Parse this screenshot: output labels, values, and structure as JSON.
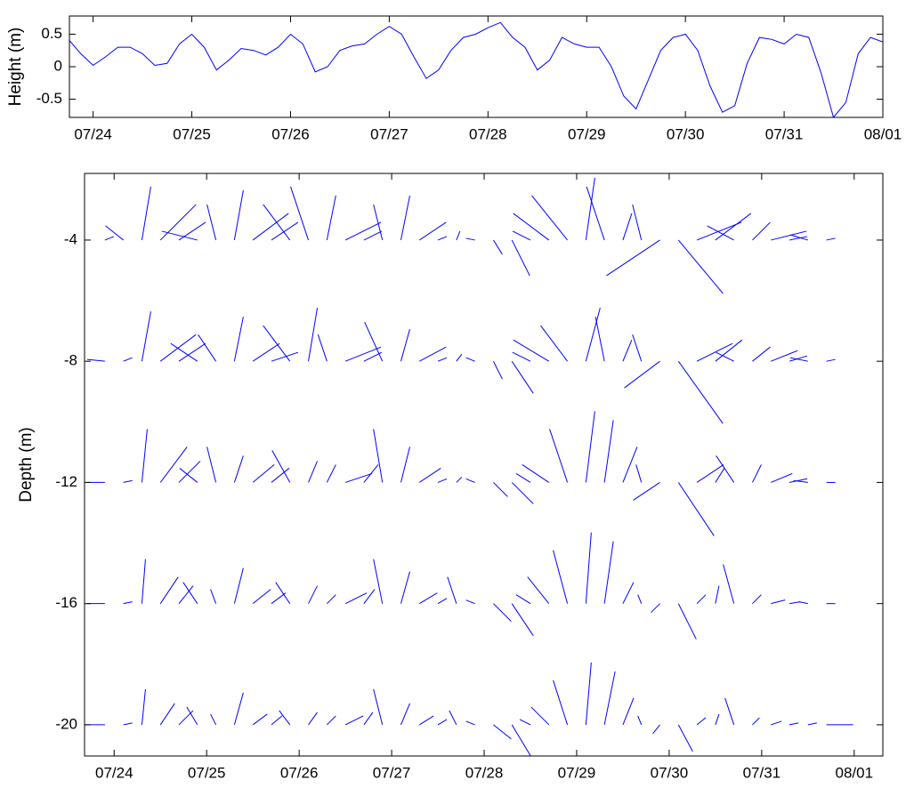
{
  "chart_data": [
    {
      "type": "line",
      "ylabel": "Height (m)",
      "color": "#0000ff",
      "x": [
        -0.25,
        -0.125,
        0,
        0.125,
        0.25,
        0.375,
        0.5,
        0.625,
        0.75,
        0.875,
        1,
        1.125,
        1.25,
        1.375,
        1.5,
        1.625,
        1.75,
        1.875,
        2,
        2.125,
        2.25,
        2.375,
        2.5,
        2.625,
        2.75,
        2.875,
        3,
        3.125,
        3.25,
        3.375,
        3.5,
        3.625,
        3.75,
        3.875,
        4,
        4.125,
        4.25,
        4.375,
        4.5,
        4.625,
        4.75,
        4.875,
        5,
        5.125,
        5.25,
        5.375,
        5.5,
        5.625,
        5.75,
        5.875,
        6,
        6.125,
        6.25,
        6.375,
        6.5,
        6.625,
        6.75,
        6.875,
        7,
        7.125,
        7.25,
        7.375,
        7.5,
        7.625,
        7.75,
        7.875,
        8
      ],
      "values": [
        0.42,
        0.2,
        0.02,
        0.15,
        0.3,
        0.3,
        0.2,
        0.02,
        0.05,
        0.35,
        0.5,
        0.3,
        -0.05,
        0.1,
        0.28,
        0.25,
        0.18,
        0.3,
        0.5,
        0.35,
        -0.08,
        0,
        0.25,
        0.32,
        0.35,
        0.5,
        0.62,
        0.5,
        0.15,
        -0.18,
        -0.05,
        0.25,
        0.45,
        0.5,
        0.6,
        0.68,
        0.45,
        0.3,
        -0.05,
        0.1,
        0.45,
        0.35,
        0.3,
        0.3,
        0,
        -0.45,
        -0.65,
        -0.2,
        0.25,
        0.45,
        0.5,
        0.25,
        -0.3,
        -0.7,
        -0.6,
        0.05,
        0.45,
        0.42,
        0.35,
        0.5,
        0.45,
        -0.1,
        -0.78,
        -0.55,
        0.2,
        0.45,
        0.38
      ],
      "xlim": [
        -0.24,
        8.0
      ],
      "ylim": [
        -0.78,
        0.78
      ],
      "yticks": [
        -0.5,
        0,
        0.5
      ],
      "xticks": [
        {
          "value": 0,
          "label": "07/24"
        },
        {
          "value": 1,
          "label": "07/25"
        },
        {
          "value": 2,
          "label": "07/26"
        },
        {
          "value": 3,
          "label": "07/27"
        },
        {
          "value": 4,
          "label": "07/28"
        },
        {
          "value": 5,
          "label": "07/29"
        },
        {
          "value": 6,
          "label": "07/30"
        },
        {
          "value": 7,
          "label": "07/31"
        },
        {
          "value": 8,
          "label": "08/01"
        }
      ]
    },
    {
      "type": "stick",
      "ylabel": "Depth (m)",
      "color": "#0000ff",
      "x": [
        -0.1,
        0.1,
        0.3,
        0.5,
        0.7,
        0.9,
        1.1,
        1.3,
        1.5,
        1.7,
        1.9,
        2.1,
        2.3,
        2.5,
        2.7,
        2.9,
        3.1,
        3.3,
        3.5,
        3.7,
        3.9,
        4.1,
        4.3,
        4.5,
        4.7,
        4.9,
        5.1,
        5.3,
        5.5,
        5.7,
        5.9,
        6.1,
        6.3,
        6.5,
        6.7,
        6.9,
        7.1,
        7.3,
        7.5,
        7.7
      ],
      "series": [
        {
          "depth": -4,
          "u": [
            0.05,
            -0.1,
            0.05,
            0.2,
            0.15,
            -0.2,
            -0.05,
            0.05,
            0.2,
            0.15,
            -0.15,
            -0.1,
            0.05,
            0.2,
            0.1,
            -0.05,
            0.05,
            0.15,
            0.05,
            0.02,
            -0.05,
            0.05,
            0.1,
            -0.1,
            -0.2,
            -0.2,
            0.05,
            -0.1,
            0.05,
            -0.05,
            -0.3,
            0.25,
            0.25,
            0.2,
            -0.15,
            0.1,
            0.2,
            0.1,
            -0.1,
            0.05
          ],
          "v": [
            0.02,
            0.08,
            0.3,
            0.2,
            0.1,
            0.05,
            0.2,
            0.28,
            0.15,
            0.1,
            0.2,
            0.3,
            0.25,
            0.1,
            0.05,
            0.2,
            0.25,
            0.1,
            0.02,
            0.05,
            0.01,
            -0.08,
            -0.2,
            0.05,
            0.15,
            0.25,
            0.35,
            0.3,
            0.15,
            0.2,
            -0.2,
            -0.3,
            0.1,
            0.15,
            0.08,
            0.1,
            0.05,
            0.02,
            0.03,
            0.01
          ]
        },
        {
          "depth": -8,
          "u": [
            -0.1,
            0.05,
            0.05,
            0.2,
            0.15,
            -0.15,
            -0.1,
            0.05,
            0.15,
            0.15,
            -0.15,
            0.05,
            -0.05,
            0.2,
            0.1,
            -0.1,
            0.05,
            0.15,
            0.05,
            0.03,
            -0.05,
            0.05,
            0.12,
            -0.1,
            -0.2,
            -0.15,
            0.08,
            -0.05,
            0.05,
            -0.05,
            -0.2,
            0.25,
            0.2,
            0.15,
            -0.1,
            0.1,
            0.15,
            0.1,
            -0.1,
            0.05
          ],
          "v": [
            0.01,
            0.02,
            0.28,
            0.15,
            0.1,
            0.1,
            0.15,
            0.25,
            0.1,
            0.05,
            0.2,
            0.3,
            0.15,
            0.08,
            0.05,
            0.22,
            0.18,
            0.08,
            0.02,
            0.04,
            0.02,
            -0.1,
            -0.18,
            0.05,
            0.12,
            0.2,
            0.3,
            0.25,
            0.12,
            0.15,
            -0.15,
            -0.35,
            0.1,
            0.12,
            0.05,
            0.08,
            0.06,
            0.03,
            0.02,
            0.01
          ]
        },
        {
          "depth": -12,
          "u": [
            -0.1,
            0.05,
            0.03,
            0.15,
            0.12,
            -0.1,
            -0.05,
            0.05,
            0.12,
            0.1,
            -0.1,
            0.05,
            0.05,
            0.15,
            0.08,
            -0.05,
            0.05,
            0.12,
            0.05,
            0.03,
            -0.05,
            0.08,
            0.12,
            -0.08,
            -0.15,
            -0.1,
            0.05,
            0.05,
            0.08,
            -0.03,
            -0.15,
            0.2,
            0.15,
            0.05,
            -0.1,
            0.05,
            0.12,
            0.1,
            -0.08,
            0.05
          ],
          "v": [
            0,
            0.01,
            0.3,
            0.2,
            0.12,
            0.08,
            0.2,
            0.15,
            0.1,
            0.08,
            0.18,
            0.12,
            0.1,
            0.05,
            0.1,
            0.3,
            0.2,
            0.08,
            0.02,
            0.03,
            0.02,
            -0.08,
            -0.12,
            0.05,
            0.1,
            0.3,
            0.4,
            0.35,
            0.2,
            0.1,
            -0.1,
            -0.3,
            0.1,
            0.08,
            0.15,
            0.1,
            0.05,
            0.02,
            0.01,
            0
          ]
        },
        {
          "depth": -16,
          "u": [
            -0.1,
            0.05,
            0.02,
            0.1,
            0.08,
            -0.08,
            -0.03,
            0.05,
            0.1,
            0.08,
            -0.08,
            0.05,
            0.05,
            0.12,
            0.06,
            -0.05,
            0.05,
            0.1,
            0.05,
            -0.05,
            -0.05,
            0.1,
            0.12,
            -0.08,
            -0.12,
            -0.08,
            0.03,
            0.05,
            0.06,
            -0.02,
            -0.05,
            0.1,
            0.05,
            0.02,
            -0.06,
            0.05,
            0.08,
            0.06,
            -0.05,
            0.05
          ],
          "v": [
            0,
            0.01,
            0.25,
            0.15,
            0.1,
            0.12,
            0.08,
            0.2,
            0.08,
            0.06,
            0.12,
            0.1,
            0.05,
            0.06,
            0.08,
            0.25,
            0.18,
            0.06,
            0.03,
            0.15,
            0.02,
            -0.1,
            -0.18,
            0.05,
            0.15,
            0.3,
            0.4,
            0.35,
            0.12,
            0.05,
            -0.05,
            -0.2,
            0.05,
            0.1,
            0.22,
            0.05,
            0.02,
            0.01,
            0.01,
            0
          ]
        },
        {
          "depth": -20,
          "u": [
            -0.12,
            0.05,
            0.02,
            0.08,
            0.08,
            -0.06,
            -0.03,
            0.05,
            0.08,
            0.06,
            -0.06,
            0.05,
            0.05,
            0.1,
            0.05,
            -0.05,
            0.05,
            0.08,
            0.05,
            -0.04,
            -0.05,
            0.1,
            0.12,
            -0.06,
            -0.1,
            -0.08,
            0.03,
            0.06,
            0.06,
            -0.02,
            -0.04,
            0.08,
            0.05,
            0.02,
            -0.05,
            0.04,
            0.06,
            0.05,
            0.05,
            0.15
          ],
          "v": [
            0,
            0.01,
            0.2,
            0.12,
            0.08,
            0.1,
            0.06,
            0.18,
            0.06,
            0.05,
            0.08,
            0.07,
            0.05,
            0.05,
            0.07,
            0.2,
            0.12,
            0.05,
            0.03,
            0.08,
            0.02,
            -0.08,
            -0.2,
            0.03,
            0.1,
            0.25,
            0.35,
            0.3,
            0.15,
            0.05,
            -0.05,
            -0.15,
            0.04,
            0.06,
            0.15,
            0.04,
            0.02,
            0.01,
            0.01,
            0
          ]
        }
      ],
      "xlim": [
        -0.32,
        8.31
      ],
      "ylim": [
        -21.03,
        -1.8
      ],
      "yticks": [
        -20,
        -16,
        -12,
        -8,
        -4
      ],
      "xticks": [
        {
          "value": 0,
          "label": "07/24"
        },
        {
          "value": 1,
          "label": "07/25"
        },
        {
          "value": 2,
          "label": "07/26"
        },
        {
          "value": 3,
          "label": "07/27"
        },
        {
          "value": 4,
          "label": "07/28"
        },
        {
          "value": 5,
          "label": "07/29"
        },
        {
          "value": 6,
          "label": "07/30"
        },
        {
          "value": 7,
          "label": "07/31"
        },
        {
          "value": 8,
          "label": "08/01"
        }
      ]
    }
  ]
}
